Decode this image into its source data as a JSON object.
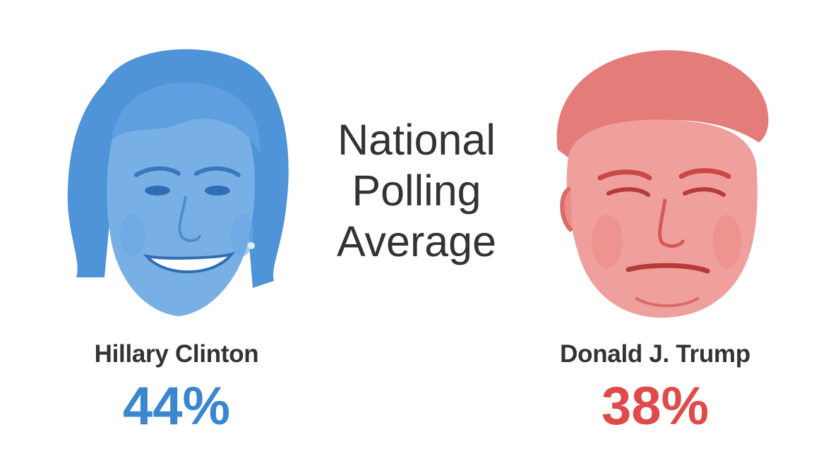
{
  "chart_data": {
    "type": "table",
    "title": "National Polling Average",
    "title_lines": [
      "National",
      "Polling",
      "Average"
    ],
    "candidates": [
      {
        "name": "Hillary Clinton",
        "value": 44,
        "label": "44%",
        "color": "#3a86cf",
        "tint": "#5b9ee0",
        "shade": "#2f6db4"
      },
      {
        "name": "Donald J. Trump",
        "value": 38,
        "label": "38%",
        "color": "#e04a4a",
        "tint": "#ec8b88",
        "shade": "#c94846"
      }
    ]
  }
}
